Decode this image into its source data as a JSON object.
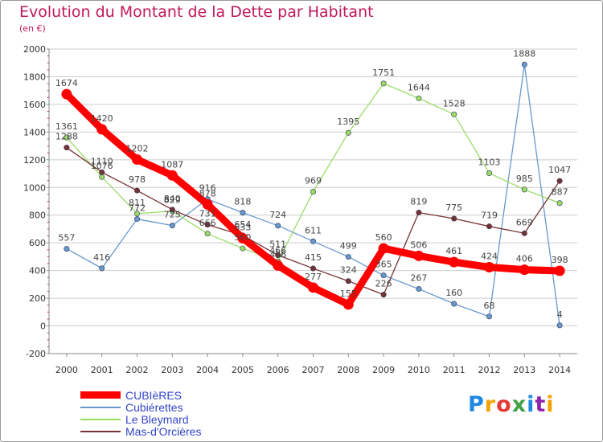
{
  "title": "Evolution du Montant de la Dette par Habitant",
  "subtitle": "(en €)",
  "logo": "Proxiti",
  "colors": {
    "title": "#c2185b",
    "axis_text": "#333333",
    "grid": "#cccccc",
    "axis_tick": "#cc0000"
  },
  "chart_data": {
    "type": "line",
    "x": [
      2000,
      2001,
      2002,
      2003,
      2004,
      2005,
      2006,
      2007,
      2008,
      2009,
      2010,
      2011,
      2012,
      2013,
      2014
    ],
    "ylim": [
      -200,
      2000
    ],
    "yticks": [
      -200,
      0,
      200,
      400,
      600,
      800,
      1000,
      1200,
      1400,
      1600,
      1800,
      2000
    ],
    "grid": "horizontal",
    "legend_position": "bottom-left",
    "series": [
      {
        "name": "CUBIèRES",
        "color": "#ff0000",
        "values": [
          1674,
          1420,
          1202,
          1087,
          878,
          633,
          436,
          277,
          155,
          560,
          506,
          461,
          424,
          406,
          398
        ]
      },
      {
        "name": "Cubiérettes",
        "color": "#6699cc",
        "values": [
          557,
          416,
          772,
          725,
          916,
          818,
          724,
          611,
          499,
          365,
          267,
          160,
          68,
          1888,
          4
        ]
      },
      {
        "name": "Le Bleymard",
        "color": "#99dd66",
        "values": [
          1361,
          1076,
          811,
          829,
          666,
          560,
          466,
          969,
          1395,
          1751,
          1644,
          1528,
          1103,
          985,
          887
        ]
      },
      {
        "name": "Mas-d'Orcières",
        "color": "#773333",
        "values": [
          1288,
          1110,
          978,
          840,
          731,
          654,
          511,
          415,
          324,
          226,
          819,
          775,
          719,
          669,
          1047
        ]
      }
    ]
  }
}
